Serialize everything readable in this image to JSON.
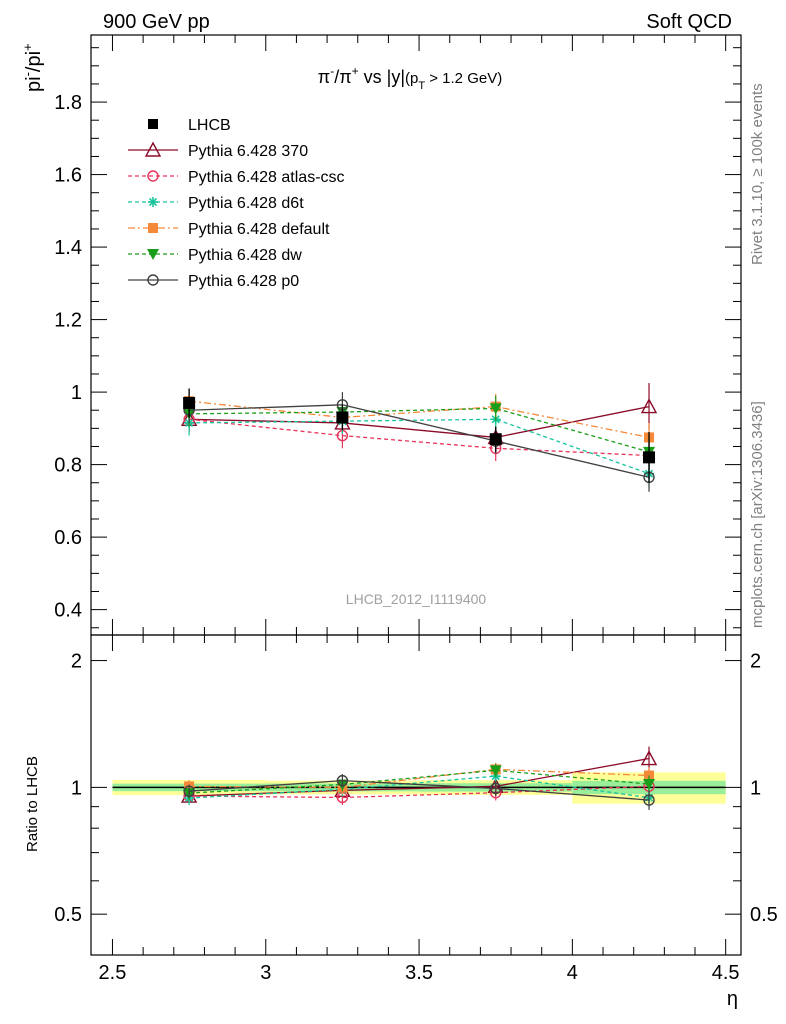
{
  "header": {
    "left": "900 GeV pp",
    "right": "Soft QCD"
  },
  "side_labels": {
    "rivet": "Rivet 3.1.10, ≥ 100k events",
    "mcplots": "mcplots.cern.ch [arXiv:1306.3436]"
  },
  "watermark": "LHCB_2012_I1119400",
  "chart_data": {
    "type": "scatter",
    "title_parts": {
      "a": "π",
      "a_sup": "-",
      "b": "/π",
      "b_sup": "+",
      "c": " vs |y|",
      "d": "(p",
      "d_sub": "T",
      "e": " > 1.2 GeV)"
    },
    "ylabel_parts": {
      "a": "pi",
      "a_sup": "-",
      "b": "/pi",
      "b_sup": "+"
    },
    "xlabel": "η",
    "ratio_ylabel": "Ratio to LHCB",
    "xlim": [
      2.43,
      4.55
    ],
    "ylim": [
      0.33,
      1.985
    ],
    "ratio_ylim": [
      0.4,
      2.3
    ],
    "x_ticks": [
      2.5,
      3,
      3.5,
      4,
      4.5
    ],
    "x_tick_labels": [
      "2.5",
      "3",
      "3.5",
      "4",
      "4.5"
    ],
    "y_ticks": [
      0.4,
      0.6,
      0.8,
      1.0,
      1.2,
      1.4,
      1.6,
      1.8
    ],
    "y_tick_labels": [
      "0.4",
      "0.6",
      "0.8",
      "1",
      "1.2",
      "1.4",
      "1.6",
      "1.8"
    ],
    "ratio_ticks": [
      0.5,
      1,
      2
    ],
    "ratio_tick_labels": [
      "0.5",
      "1",
      "2"
    ],
    "x": [
      2.75,
      3.25,
      3.75,
      4.25
    ],
    "data": {
      "name": "LHCB",
      "values": [
        0.97,
        0.93,
        0.87,
        0.82
      ],
      "bins": [
        [
          2.5,
          3.0
        ],
        [
          3.0,
          3.5
        ],
        [
          3.5,
          4.0
        ],
        [
          4.0,
          4.5
        ]
      ],
      "stat_err": [
        0.02,
        0.02,
        0.02,
        0.03
      ],
      "total_err": [
        0.04,
        0.035,
        0.035,
        0.07
      ]
    },
    "series": [
      {
        "name": "Pythia 6.428 370",
        "color": "#8b0a28",
        "marker": "triangle-open",
        "dash": "",
        "values": [
          0.925,
          0.915,
          0.875,
          0.96
        ],
        "errors": [
          0.03,
          0.03,
          0.03,
          0.065
        ]
      },
      {
        "name": "Pythia 6.428 atlas-csc",
        "color": "#e8335b",
        "marker": "circle-open",
        "dash": "4,3",
        "values": [
          0.925,
          0.88,
          0.845,
          0.825
        ],
        "errors": [
          0.035,
          0.035,
          0.035,
          0.04
        ]
      },
      {
        "name": "Pythia 6.428 d6t",
        "color": "#17c49c",
        "marker": "star",
        "dash": "4,3",
        "values": [
          0.915,
          0.92,
          0.925,
          0.775
        ],
        "errors": [
          0.035,
          0.035,
          0.035,
          0.04
        ]
      },
      {
        "name": "Pythia 6.428 default",
        "color": "#f5893a",
        "marker": "square",
        "dash": "7,3,2,3",
        "values": [
          0.975,
          0.93,
          0.96,
          0.875
        ],
        "errors": [
          0.035,
          0.035,
          0.035,
          0.04
        ]
      },
      {
        "name": "Pythia 6.428 dw",
        "color": "#1a9e1a",
        "marker": "triangle-down",
        "dash": "4,3",
        "values": [
          0.94,
          0.945,
          0.955,
          0.835
        ],
        "errors": [
          0.035,
          0.035,
          0.035,
          0.04
        ]
      },
      {
        "name": "Pythia 6.428 p0",
        "color": "#404040",
        "marker": "circle-open",
        "dash": "",
        "values": [
          0.95,
          0.965,
          0.865,
          0.765
        ],
        "errors": [
          0.035,
          0.035,
          0.035,
          0.04
        ]
      }
    ]
  }
}
